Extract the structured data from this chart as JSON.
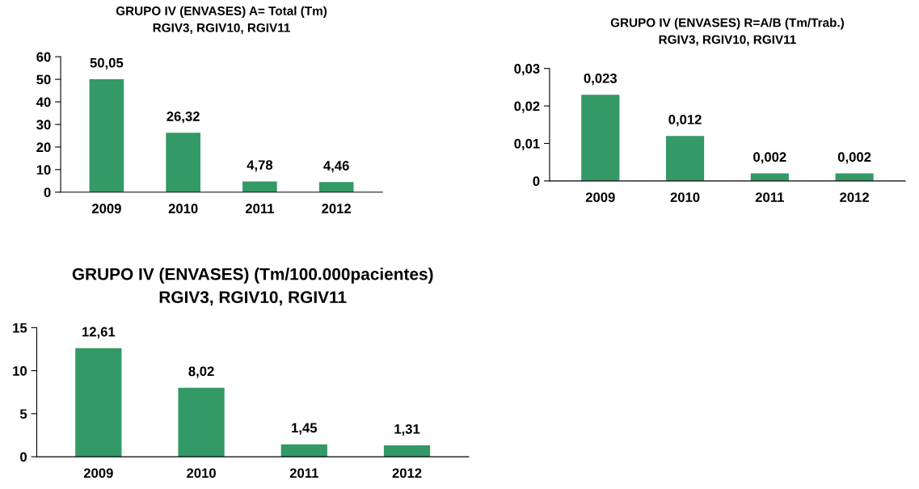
{
  "chart_data": [
    {
      "type": "bar",
      "title": "GRUPO IV (ENVASES) A= Total (Tm)\nRGIV3, RGIV10, RGIV11",
      "categories": [
        "2009",
        "2010",
        "2011",
        "2012"
      ],
      "values": [
        50.05,
        26.32,
        4.78,
        4.46
      ],
      "value_labels": [
        "50,05",
        "26,32",
        "4,78",
        "4,46"
      ],
      "color": "#339966",
      "ylim": [
        0,
        60
      ],
      "yticks": [
        0,
        10,
        20,
        30,
        40,
        50,
        60
      ],
      "grid": false,
      "legend": false
    },
    {
      "type": "bar",
      "title": "GRUPO IV (ENVASES) R=A/B (Tm/Trab.)\nRGIV3, RGIV10, RGIV11",
      "categories": [
        "2009",
        "2010",
        "2011",
        "2012"
      ],
      "values": [
        0.023,
        0.012,
        0.002,
        0.002
      ],
      "value_labels": [
        "0,023",
        "0,012",
        "0,002",
        "0,002"
      ],
      "color": "#339966",
      "ylim": [
        0,
        0.03
      ],
      "yticks": [
        0,
        {
          "value": 0.01,
          "label": "0,01"
        },
        {
          "value": 0.02,
          "label": "0,02"
        },
        {
          "value": 0.03,
          "label": "0,03"
        }
      ],
      "grid": false,
      "legend": false
    },
    {
      "type": "bar",
      "title": "GRUPO IV (ENVASES) (Tm/100.000pacientes)\nRGIV3, RGIV10, RGIV11",
      "categories": [
        "2009",
        "2010",
        "2011",
        "2012"
      ],
      "values": [
        12.61,
        8.02,
        1.45,
        1.31
      ],
      "value_labels": [
        "12,61",
        "8,02",
        "1,45",
        "1,31"
      ],
      "color": "#339966",
      "ylim": [
        0,
        15
      ],
      "yticks": [
        0,
        5,
        10,
        15
      ],
      "grid": false,
      "legend": false
    }
  ]
}
